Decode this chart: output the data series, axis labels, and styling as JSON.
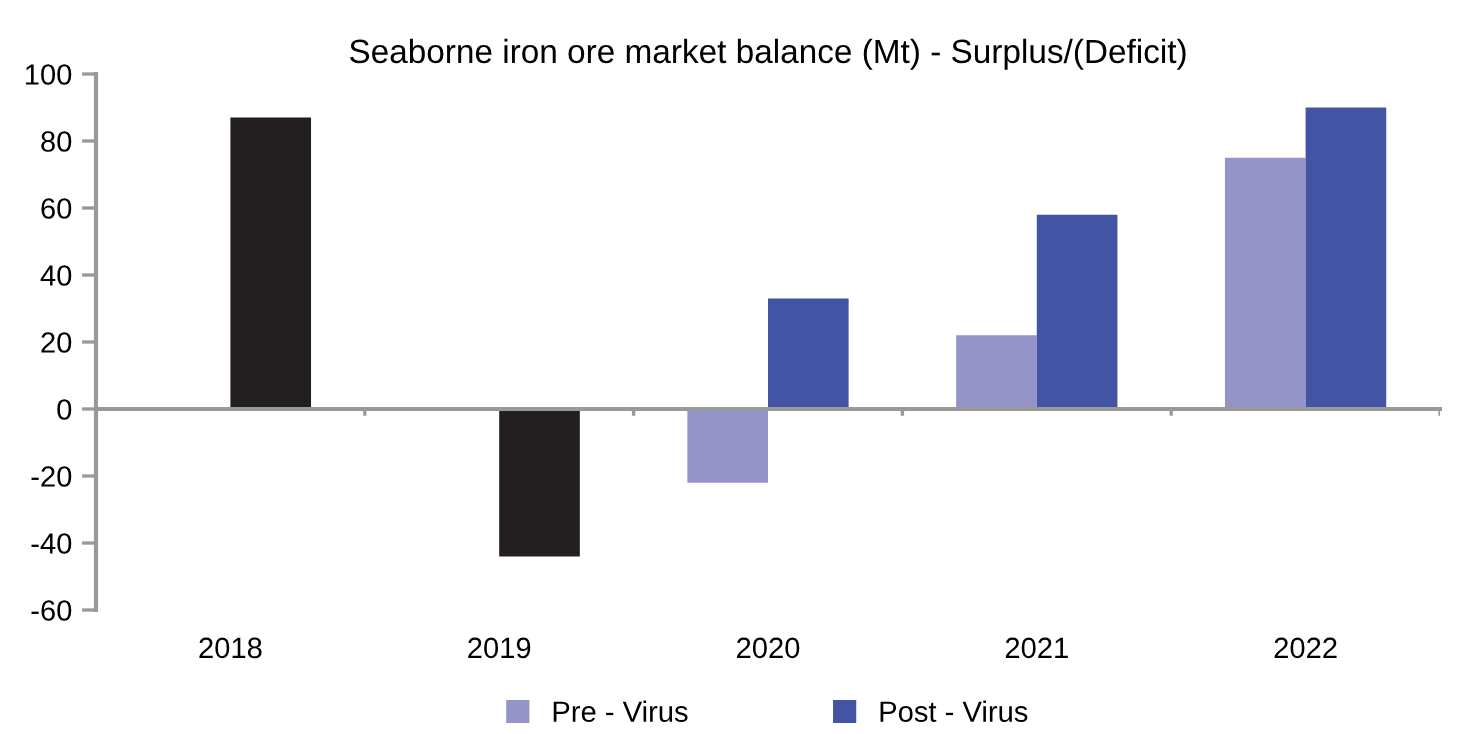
{
  "chart_data": {
    "type": "bar",
    "title": "Seaborne iron ore market balance (Mt) - Surplus/(Deficit)",
    "categories": [
      "2018",
      "2019",
      "2020",
      "2021",
      "2022"
    ],
    "series": [
      {
        "name": "Pre - Virus",
        "color": "#9494c8",
        "values": [
          null,
          null,
          -22,
          22,
          75
        ]
      },
      {
        "name": "Post - Virus",
        "color": "#4454a4",
        "colors": [
          "#231f20",
          "#231f20",
          "#4454a4",
          "#4454a4",
          "#4454a4"
        ],
        "values": [
          87,
          -44,
          33,
          58,
          90
        ]
      }
    ],
    "ylim": [
      -60,
      100
    ],
    "yticks": [
      -60,
      -40,
      -20,
      0,
      20,
      40,
      60,
      80,
      100
    ],
    "legend": "bottom"
  }
}
